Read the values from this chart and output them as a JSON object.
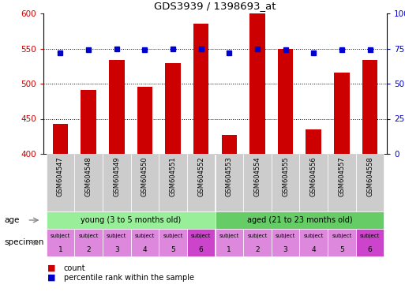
{
  "title": "GDS3939 / 1398693_at",
  "samples": [
    "GSM604547",
    "GSM604548",
    "GSM604549",
    "GSM604550",
    "GSM604551",
    "GSM604552",
    "GSM604553",
    "GSM604554",
    "GSM604555",
    "GSM604556",
    "GSM604557",
    "GSM604558"
  ],
  "counts": [
    443,
    491,
    534,
    496,
    529,
    585,
    427,
    600,
    550,
    435,
    516,
    534
  ],
  "percentile_ranks": [
    72,
    74,
    75,
    74,
    75,
    75,
    72,
    75,
    74,
    72,
    74,
    74
  ],
  "ylim_left": [
    400,
    600
  ],
  "ylim_right": [
    0,
    100
  ],
  "yticks_left": [
    400,
    450,
    500,
    550,
    600
  ],
  "yticks_right": [
    0,
    25,
    50,
    75,
    100
  ],
  "bar_color": "#cc0000",
  "dot_color": "#0000cc",
  "age_young_label": "young (3 to 5 months old)",
  "age_aged_label": "aged (21 to 23 months old)",
  "age_young_color": "#99ee99",
  "age_aged_color": "#66cc66",
  "spec_color_normal": "#dd88dd",
  "spec_color_subject6": "#cc44cc",
  "legend_count_color": "#cc0000",
  "legend_pct_color": "#0000cc",
  "background_color": "#ffffff",
  "xtick_bg_color": "#cccccc",
  "grid_lines": [
    450,
    500,
    550
  ],
  "age_arrow_color": "#888888",
  "spec_arrow_color": "#888888"
}
